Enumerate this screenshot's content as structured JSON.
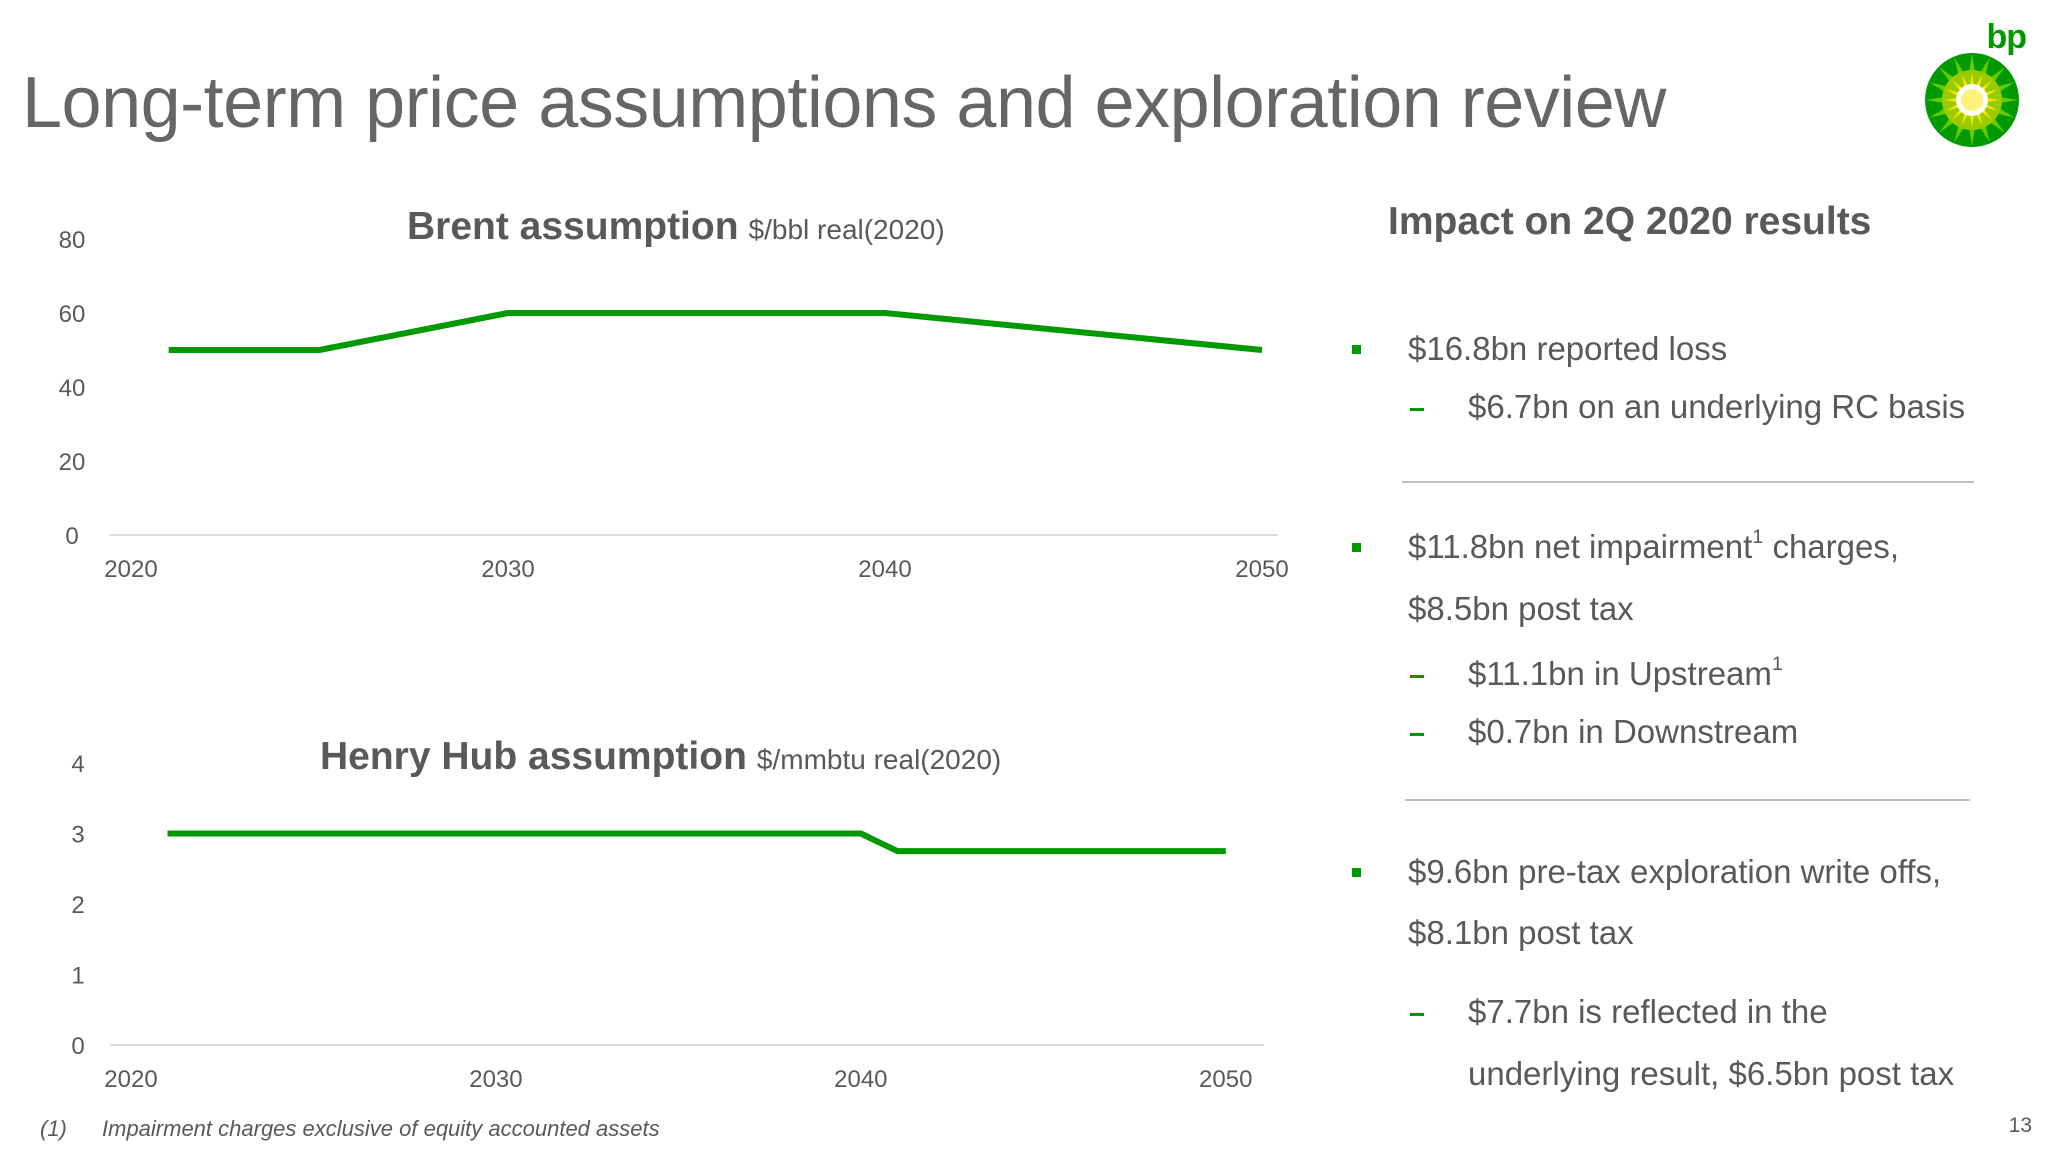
{
  "slide": {
    "title": "Long-term price assumptions and exploration review",
    "logo_text": "bp",
    "page_number": "13"
  },
  "colors": {
    "accent": "#009900",
    "text": "#595959",
    "axis": "#d9d9d9"
  },
  "chart_data": [
    {
      "type": "line",
      "title": "Brent assumption",
      "unit": "$/bbl real(2020)",
      "x": [
        2021,
        2025,
        2030,
        2040,
        2050
      ],
      "series": [
        {
          "values": [
            50,
            50,
            60,
            60,
            50
          ]
        }
      ],
      "xlim": [
        2020,
        2050
      ],
      "ylim": [
        0,
        80
      ],
      "xticks": [
        "2020",
        "2030",
        "2040",
        "2050"
      ],
      "yticks": [
        "0",
        "20",
        "40",
        "60",
        "80"
      ],
      "grid": false,
      "legend": "none",
      "line_color": "#009900"
    },
    {
      "type": "line",
      "title": "Henry Hub assumption",
      "unit": "$/mmbtu real(2020)",
      "x": [
        2021,
        2030,
        2040,
        2041,
        2050
      ],
      "series": [
        {
          "values": [
            3.0,
            3.0,
            3.0,
            2.75,
            2.75
          ]
        }
      ],
      "xlim": [
        2020,
        2050.5
      ],
      "ylim": [
        0,
        4
      ],
      "xticks": [
        "2020",
        "2030",
        "2040",
        "2050"
      ],
      "yticks": [
        "0",
        "1",
        "2",
        "3",
        "4"
      ],
      "grid": false,
      "legend": "none",
      "line_color": "#009900"
    }
  ],
  "impact": {
    "heading": "Impact on 2Q 2020 results",
    "b1": {
      "text": "$16.8bn reported loss",
      "sub1": "$6.7bn on an underlying RC basis"
    },
    "b2": {
      "pre": "$11.8bn net impairment",
      "sup": "1",
      "post": " charges,",
      "line2": "$8.5bn post tax",
      "sub1_pre": "$11.1bn in Upstream",
      "sub1_sup": "1",
      "sub2": "$0.7bn in Downstream"
    },
    "b3": {
      "line1": "$9.6bn pre-tax exploration write offs,",
      "line2": "$8.1bn post tax",
      "sub1_line1": "$7.7bn is reflected in the",
      "sub1_line2": "underlying result, $6.5bn post tax"
    }
  },
  "footnote": {
    "marker": "(1)",
    "text": "Impairment charges exclusive of equity accounted assets"
  }
}
